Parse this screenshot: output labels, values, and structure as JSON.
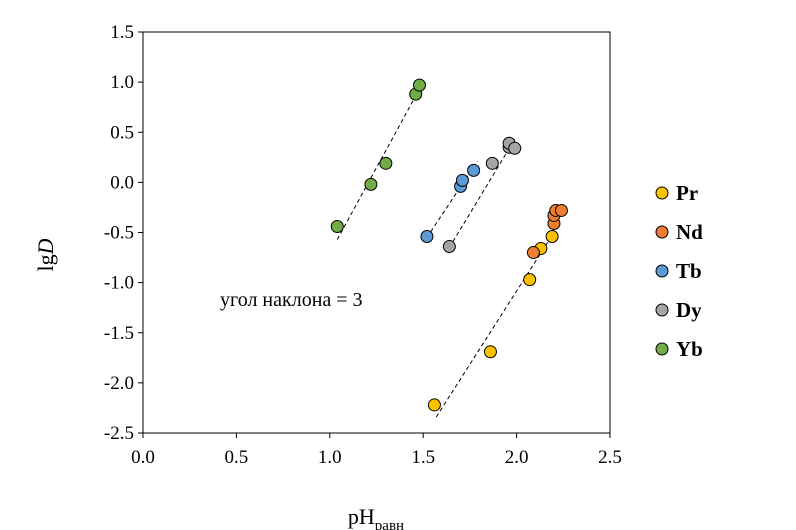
{
  "chart_data": {
    "type": "scatter",
    "title": "",
    "xlabel": "pH",
    "xlabel_subscript": "равн",
    "ylabel": "lg",
    "ylabel_italic": "D",
    "xlim": [
      0.0,
      2.5
    ],
    "ylim": [
      -2.5,
      1.5
    ],
    "x_ticks": [
      "0.0",
      "0.5",
      "1.0",
      "1.5",
      "2.0",
      "2.5"
    ],
    "y_ticks": [
      "1.5",
      "1.0",
      "0.5",
      "0.0",
      "-0.5",
      "-1.0",
      "-1.5",
      "-2.0",
      "-2.5"
    ],
    "grid": false,
    "legend_position": "right",
    "annotation": "угол наклона = 3",
    "series": [
      {
        "name": "Pr",
        "color": "#FFC000",
        "points": [
          [
            1.56,
            -2.22
          ],
          [
            1.86,
            -1.69
          ],
          [
            2.07,
            -0.97
          ],
          [
            2.13,
            -0.66
          ],
          [
            2.19,
            -0.54
          ]
        ],
        "fit_line": [
          [
            1.57,
            -2.34
          ],
          [
            2.2,
            -0.5
          ]
        ]
      },
      {
        "name": "Nd",
        "color": "#ED7D31",
        "points": [
          [
            2.09,
            -0.7
          ],
          [
            2.2,
            -0.41
          ],
          [
            2.2,
            -0.33
          ],
          [
            2.21,
            -0.28
          ],
          [
            2.24,
            -0.28
          ]
        ],
        "fit_line": []
      },
      {
        "name": "Tb",
        "color": "#5B9BD5",
        "points": [
          [
            1.52,
            -0.54
          ],
          [
            1.7,
            -0.04
          ],
          [
            1.71,
            0.02
          ],
          [
            1.77,
            0.12
          ]
        ],
        "fit_line": [
          [
            1.52,
            -0.55
          ],
          [
            1.79,
            0.21
          ]
        ]
      },
      {
        "name": "Dy",
        "color": "#A5A5A5",
        "points": [
          [
            1.64,
            -0.64
          ],
          [
            1.87,
            0.19
          ],
          [
            1.96,
            0.35
          ],
          [
            1.96,
            0.39
          ],
          [
            1.99,
            0.34
          ]
        ],
        "fit_line": [
          [
            1.64,
            -0.65
          ],
          [
            1.99,
            0.43
          ]
        ]
      },
      {
        "name": "Yb",
        "color": "#70AD47",
        "points": [
          [
            1.04,
            -0.44
          ],
          [
            1.22,
            -0.02
          ],
          [
            1.3,
            0.19
          ],
          [
            1.46,
            0.88
          ],
          [
            1.48,
            0.97
          ]
        ],
        "fit_line": [
          [
            1.04,
            -0.57
          ],
          [
            1.5,
            1.0
          ]
        ]
      }
    ]
  }
}
